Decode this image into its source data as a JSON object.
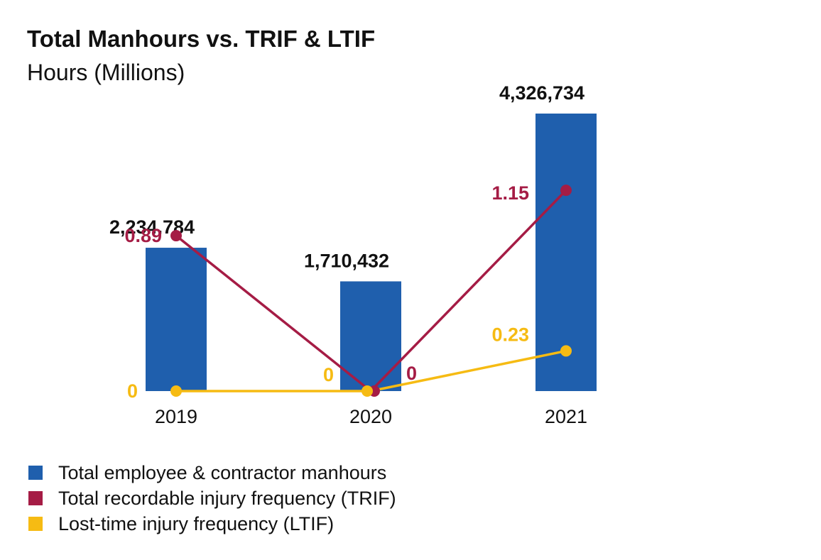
{
  "title": "Total Manhours vs. TRIF & LTIF",
  "subtitle": "Hours (Millions)",
  "colors": {
    "manhours": "#1f5fad",
    "trif": "#a51c45",
    "ltif": "#f6bb13",
    "text": "#111111"
  },
  "legend": [
    {
      "label": "Total employee & contractor manhours",
      "color": "#1f5fad"
    },
    {
      "label": "Total recordable injury frequency (TRIF)",
      "color": "#a51c45"
    },
    {
      "label": "Lost-time injury frequency (LTIF)",
      "color": "#f6bb13"
    }
  ],
  "chart_data": {
    "type": "bar",
    "categories": [
      "2019",
      "2020",
      "2021"
    ],
    "series": [
      {
        "name": "Total employee & contractor manhours",
        "kind": "bar",
        "values": [
          2234784,
          1710432,
          4326734
        ],
        "labels": [
          "2,234,784",
          "1,710,432",
          "4,326,734"
        ]
      },
      {
        "name": "Total recordable injury frequency (TRIF)",
        "kind": "line",
        "values": [
          0.89,
          0,
          1.15
        ],
        "labels": [
          "0.89",
          "0",
          "1.15"
        ]
      },
      {
        "name": "Lost-time injury frequency (LTIF)",
        "kind": "line",
        "values": [
          0,
          0,
          0.23
        ],
        "labels": [
          "0",
          "0",
          "0.23"
        ]
      }
    ],
    "grid": false,
    "legend_position": "bottom-left"
  }
}
